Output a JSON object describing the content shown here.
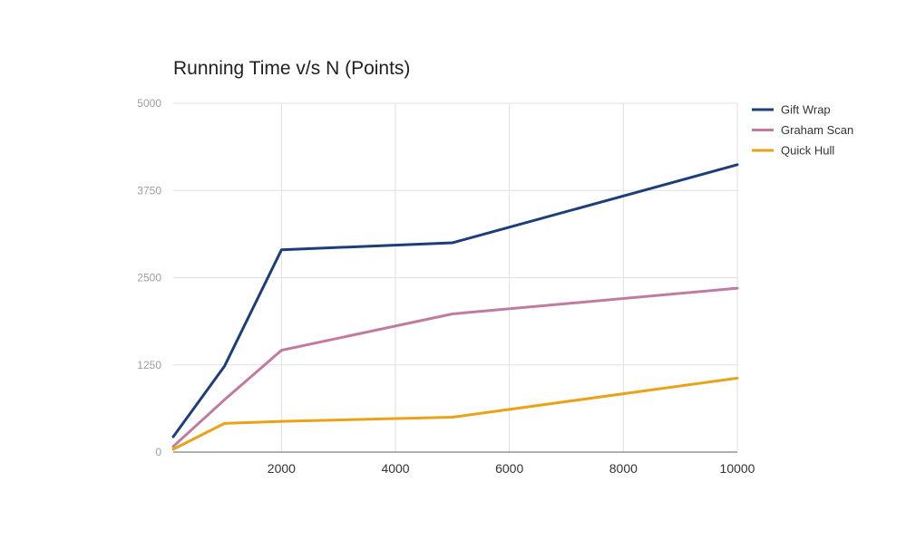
{
  "chart_data": {
    "type": "line",
    "title": "Running Time v/s N (Points)",
    "xlabel": "",
    "ylabel": "",
    "x": [
      100,
      1000,
      2000,
      5000,
      10000
    ],
    "xlim": [
      100,
      10000
    ],
    "ylim": [
      0,
      5000
    ],
    "x_ticks": [
      2000,
      4000,
      6000,
      8000,
      10000
    ],
    "y_ticks": [
      0,
      1250,
      2500,
      3750,
      5000
    ],
    "grid": true,
    "legend_position": "right",
    "series": [
      {
        "name": "Gift Wrap",
        "color": "#1c3f7a",
        "values": [
          220,
          1230,
          2900,
          3000,
          4120
        ]
      },
      {
        "name": "Graham Scan",
        "color": "#c27ba0",
        "values": [
          80,
          750,
          1460,
          1980,
          2350
        ]
      },
      {
        "name": "Quick Hull",
        "color": "#e8a317",
        "values": [
          40,
          410,
          440,
          500,
          1060
        ]
      }
    ]
  }
}
